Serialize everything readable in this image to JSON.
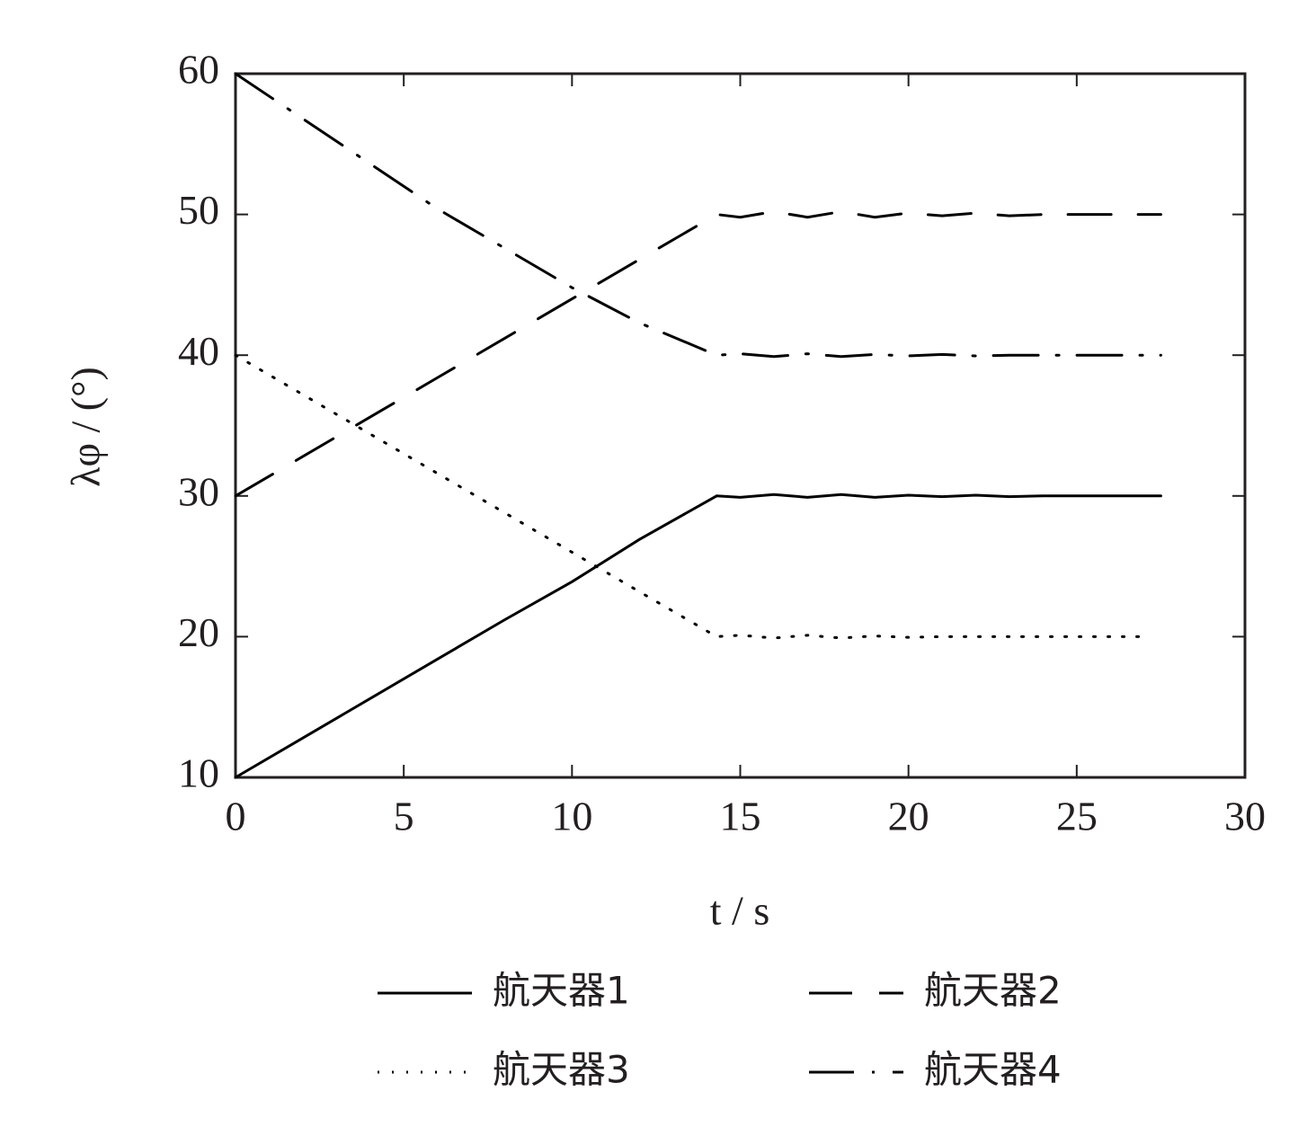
{
  "chart_data": {
    "type": "line",
    "xlabel": "t / s",
    "ylabel": "λφ / (°)",
    "x": [
      0,
      2,
      4,
      6,
      8,
      10,
      12,
      14.3,
      15,
      16,
      17,
      18,
      19,
      20,
      21,
      22,
      23,
      24,
      25,
      26,
      27,
      27.5
    ],
    "series": [
      {
        "name": "航天器1",
        "color": "#000000",
        "linestyle": "solid",
        "values": [
          10,
          12.8,
          15.6,
          18.4,
          21.2,
          23.9,
          26.9,
          30,
          29.9,
          30.1,
          29.9,
          30.1,
          29.9,
          30.05,
          29.95,
          30.05,
          29.95,
          30,
          30,
          30,
          30,
          30
        ]
      },
      {
        "name": "航天器2",
        "color": "#000000",
        "linestyle": "dashed",
        "values": [
          30,
          32.8,
          35.6,
          38.4,
          41.2,
          44,
          46.8,
          50,
          49.8,
          50.2,
          49.8,
          50.2,
          49.8,
          50.1,
          49.9,
          50.1,
          49.9,
          50,
          50,
          50,
          50,
          50
        ]
      },
      {
        "name": "航天器3",
        "color": "#000000",
        "linestyle": "dotted",
        "values": [
          40,
          37.2,
          34.4,
          31.6,
          28.8,
          26,
          23.2,
          20,
          20.1,
          19.9,
          20.1,
          19.9,
          20.05,
          19.95,
          20,
          20,
          20,
          20,
          20,
          20,
          20,
          null
        ]
      },
      {
        "name": "航天器4",
        "color": "#000000",
        "linestyle": "dashdot",
        "values": [
          60,
          56.8,
          53.6,
          50.4,
          47.6,
          44.8,
          42.3,
          40,
          40.1,
          39.9,
          40.1,
          39.9,
          40.05,
          39.95,
          40.05,
          39.95,
          40,
          40,
          40,
          40,
          40,
          40
        ]
      }
    ],
    "xlim": [
      0,
      30
    ],
    "xticks": [
      0,
      5,
      10,
      15,
      20,
      25,
      30
    ],
    "ylim": [
      10,
      60
    ],
    "yticks": [
      10,
      20,
      30,
      40,
      50,
      60
    ],
    "grid": false,
    "legend": "below"
  }
}
